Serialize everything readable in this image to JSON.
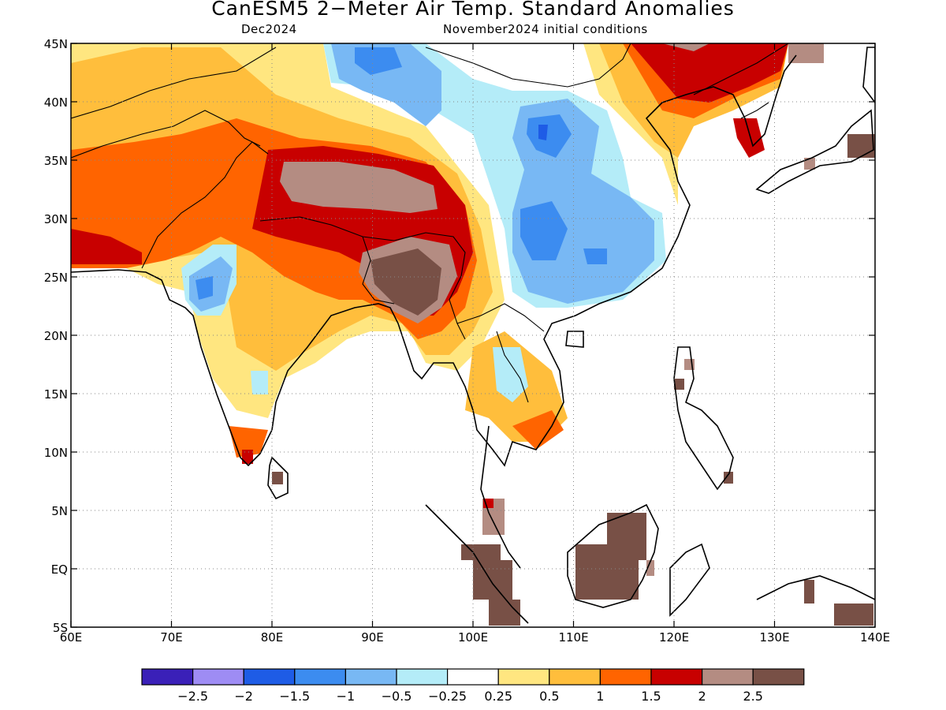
{
  "title": "CanESM5 2−Meter Air Temp. Standard Anomalies",
  "subtitle_left": "Dec2024",
  "subtitle_right": "November2024 initial conditions",
  "map": {
    "lon_range": [
      60,
      140
    ],
    "lat_range": [
      -5,
      45
    ],
    "lon_labels": [
      "60E",
      "70E",
      "80E",
      "90E",
      "100E",
      "110E",
      "120E",
      "130E",
      "140E"
    ],
    "lat_labels": [
      "45N",
      "40N",
      "35N",
      "30N",
      "25N",
      "20N",
      "15N",
      "10N",
      "5N",
      "EQ",
      "5S"
    ],
    "grid": "dotted"
  },
  "colorbar": {
    "colors": [
      "#3a20b8",
      "#9e8cf4",
      "#1e5ce6",
      "#3c8cf0",
      "#78b8f4",
      "#b4ecf8",
      "#ffffff",
      "#ffe680",
      "#ffbe3c",
      "#ff6400",
      "#c80000",
      "#b48c82",
      "#785046"
    ],
    "labels": [
      "−2.5",
      "−2",
      "−1.5",
      "−1",
      "−0.5",
      "−0.25",
      "0.25",
      "0.5",
      "1",
      "1.5",
      "2",
      "2.5"
    ]
  }
}
